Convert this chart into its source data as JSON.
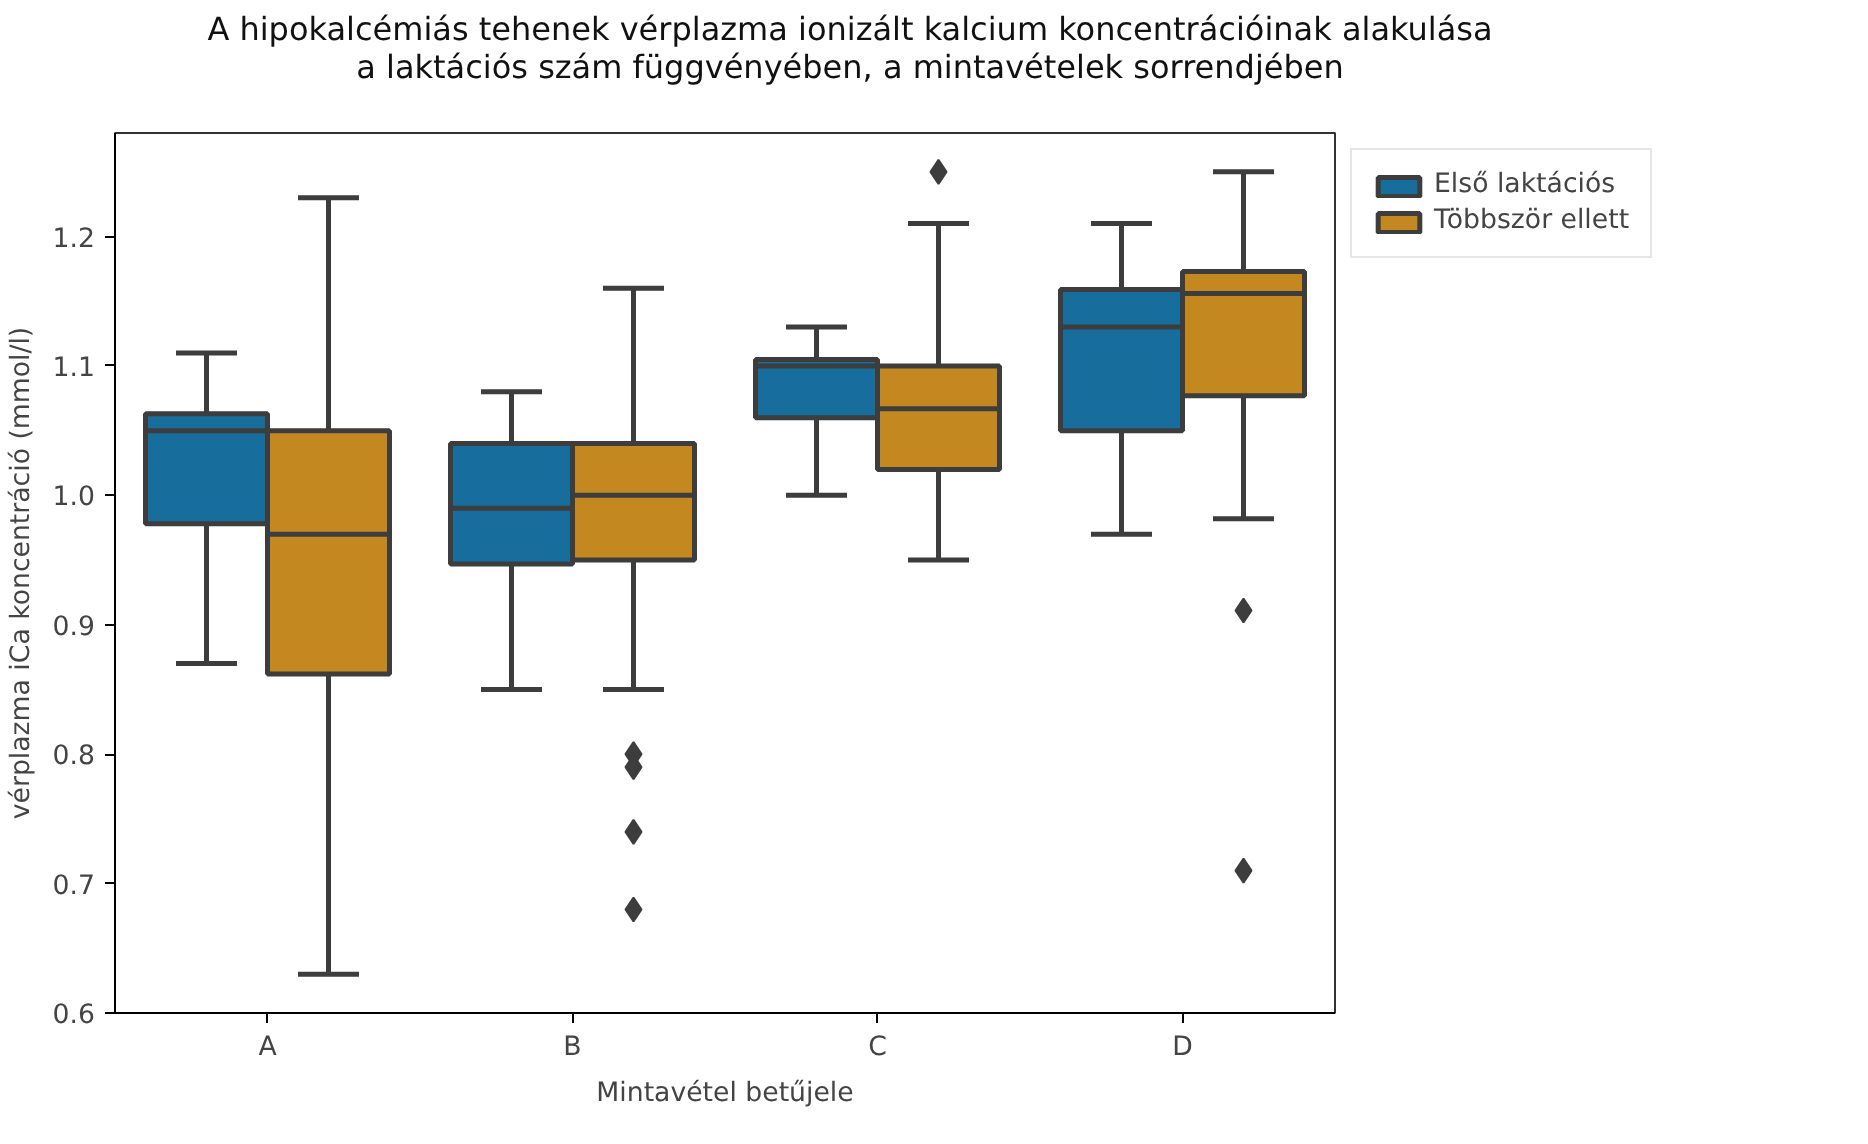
{
  "chart_data": {
    "type": "box",
    "title": "A hipokalcémiás tehenek vérplazma ionizált kalcium koncentrációinak alakulása\na laktációs szám függvényében, a mintavételek sorrendjében",
    "xlabel": "Mintavétel betűjele",
    "ylabel": "vérplazma iCa koncentráció (mmol/l)",
    "categories": [
      "A",
      "B",
      "C",
      "D"
    ],
    "ylim": [
      0.6,
      1.28
    ],
    "yticks": [
      0.6,
      0.7,
      0.8,
      0.9,
      {
        "value": 1.0,
        "label": "1.0"
      },
      1.1,
      1.2
    ],
    "grid": false,
    "legend": "right",
    "marker": "diamond",
    "series": [
      {
        "name": "Első laktációs",
        "color": "#176d9c",
        "boxes": [
          {
            "low": 0.87,
            "q1": 0.978,
            "median": 1.05,
            "q3": 1.063,
            "high": 1.11
          },
          {
            "low": 0.85,
            "q1": 0.947,
            "median": 0.99,
            "q3": 1.04,
            "high": 1.08
          },
          {
            "low": 1.0,
            "q1": 1.06,
            "median": 1.1,
            "q3": 1.105,
            "high": 1.13
          },
          {
            "low": 0.97,
            "q1": 1.05,
            "median": 1.13,
            "q3": 1.159,
            "high": 1.21
          }
        ]
      },
      {
        "name": "Többször ellett",
        "color": "#c38820",
        "boxes": [
          {
            "low": 0.63,
            "q1": 0.862,
            "median": 0.97,
            "q3": 1.05,
            "high": 1.23
          },
          {
            "low": 0.85,
            "q1": 0.95,
            "median": 1.0,
            "q3": 1.04,
            "high": 1.16,
            "outliers": [
              0.8,
              0.79,
              0.74,
              0.68
            ]
          },
          {
            "low": 0.95,
            "q1": 1.02,
            "median": 1.067,
            "q3": 1.1,
            "high": 1.21,
            "outliers": [
              1.25
            ]
          },
          {
            "low": 0.982,
            "q1": 1.077,
            "median": 1.156,
            "q3": 1.173,
            "high": 1.25,
            "outliers": [
              0.911,
              0.71
            ]
          }
        ]
      }
    ]
  }
}
